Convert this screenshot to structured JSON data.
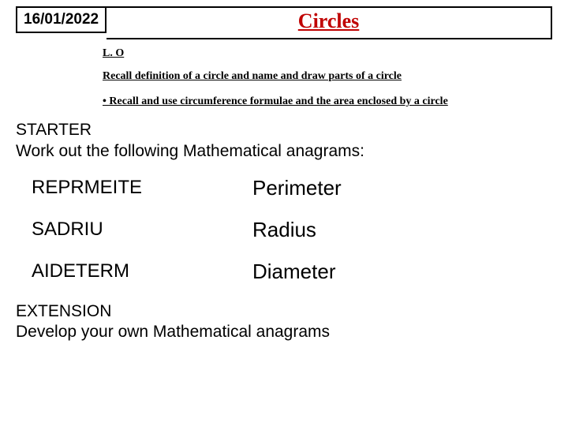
{
  "header": {
    "date": "16/01/2022",
    "title": "Circles"
  },
  "lo": {
    "heading": "L. O",
    "item1": "Recall definition of a circle and name and draw parts of a circle",
    "item2": "• Recall and use circumference formulae and the area enclosed by a circle"
  },
  "starter": {
    "heading": "STARTER",
    "prompt": "Work out the following Mathematical anagrams:"
  },
  "anagrams": [
    {
      "scrambled": "REPRMEITE",
      "answer": "Perimeter"
    },
    {
      "scrambled": "SADRIU",
      "answer": "Radius"
    },
    {
      "scrambled": "AIDETERM",
      "answer": "Diameter"
    }
  ],
  "extension": {
    "heading": "EXTENSION",
    "prompt": "Develop your own Mathematical anagrams"
  },
  "colors": {
    "title_color": "#c00000",
    "border_color": "#000000",
    "text_color": "#000000",
    "background": "#ffffff"
  }
}
